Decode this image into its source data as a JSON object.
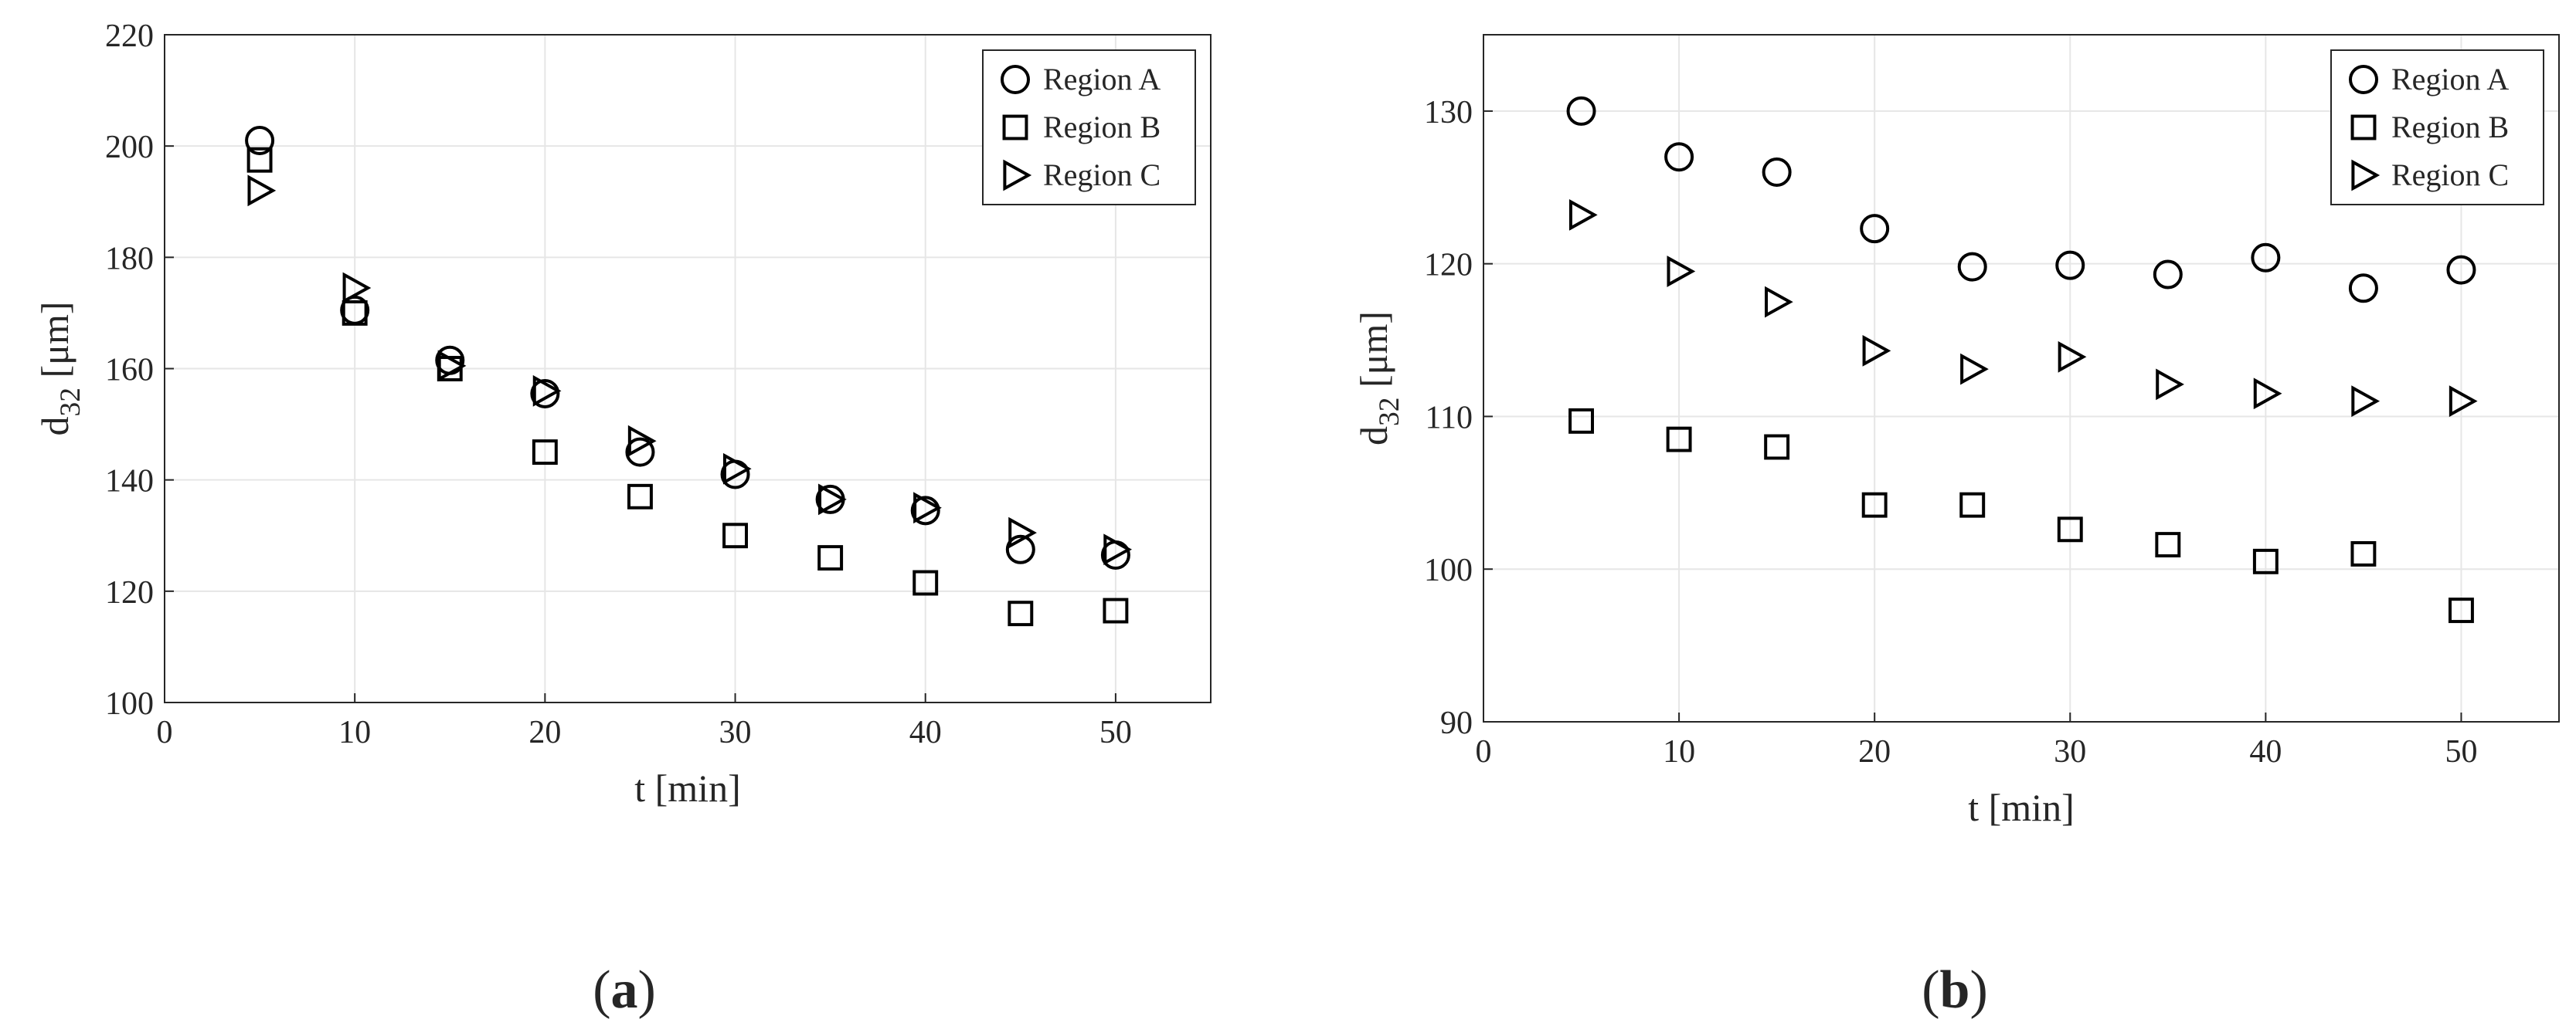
{
  "chart_data": [
    {
      "type": "scatter",
      "panel_label": "(a)",
      "x_label": "t [min]",
      "y_label": "d32 [μm]",
      "x": [
        5,
        10,
        15,
        20,
        25,
        30,
        35,
        40,
        45,
        50
      ],
      "series": [
        {
          "name": "Region A",
          "marker": "circle",
          "color": "#000000",
          "values": [
            201,
            170.5,
            161.5,
            155.5,
            145,
            141,
            136.5,
            134.5,
            127.5,
            126.5
          ]
        },
        {
          "name": "Region B",
          "marker": "square",
          "color": "#000000",
          "values": [
            197.5,
            170,
            160,
            145,
            137,
            130,
            126,
            121.5,
            116,
            116.5
          ]
        },
        {
          "name": "Region C",
          "marker": "triangle-right",
          "color": "#000000",
          "values": [
            192,
            174.5,
            160.5,
            156,
            147,
            142,
            136.5,
            135,
            130.5,
            127.5
          ]
        }
      ],
      "xlim": [
        0,
        55
      ],
      "xticks": [
        0,
        10,
        20,
        30,
        40,
        50
      ],
      "ylim": [
        100,
        220
      ],
      "yticks": [
        100,
        120,
        140,
        160,
        180,
        200,
        220
      ],
      "grid": true,
      "legend": "upper right"
    },
    {
      "type": "scatter",
      "panel_label": "(b)",
      "x_label": "t [min]",
      "y_label": "d32 [μm]",
      "x": [
        5,
        10,
        15,
        20,
        25,
        30,
        35,
        40,
        45,
        50
      ],
      "series": [
        {
          "name": "Region A",
          "marker": "circle",
          "color": "#000000",
          "values": [
            130,
            127,
            126,
            122.3,
            119.8,
            119.9,
            119.3,
            120.4,
            118.4,
            119.6
          ]
        },
        {
          "name": "Region B",
          "marker": "square",
          "color": "#000000",
          "values": [
            109.7,
            108.5,
            108,
            104.2,
            104.2,
            102.6,
            101.6,
            100.5,
            101,
            97.3
          ]
        },
        {
          "name": "Region C",
          "marker": "triangle-right",
          "color": "#000000",
          "values": [
            123.2,
            119.5,
            117.5,
            114.3,
            113.1,
            113.9,
            112.1,
            111.5,
            111,
            111
          ]
        }
      ],
      "xlim": [
        0,
        55
      ],
      "xticks": [
        0,
        10,
        20,
        30,
        40,
        50
      ],
      "ylim": [
        90,
        135
      ],
      "yticks": [
        90,
        100,
        110,
        120,
        130
      ],
      "grid": true,
      "legend": "upper right"
    }
  ]
}
